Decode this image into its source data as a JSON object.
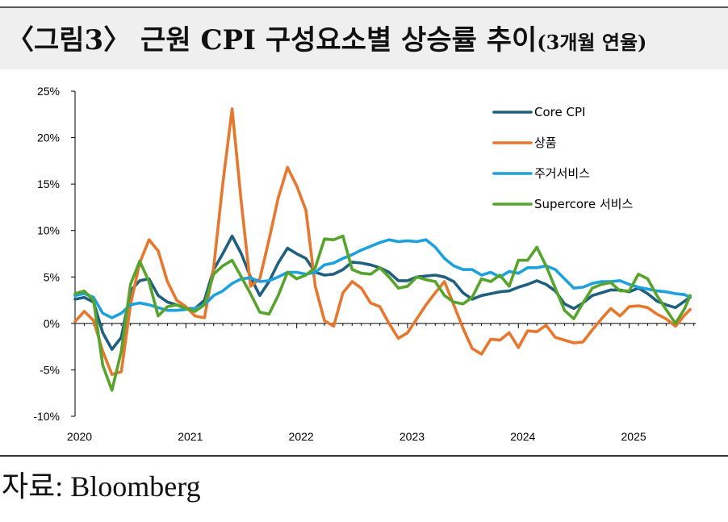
{
  "title": {
    "main": "〈그림3〉 근원 CPI 구성요소별 상승률 추이",
    "sub": "(3개월 연율)"
  },
  "source": "자료: Bloomberg",
  "chart_data": {
    "type": "line",
    "ylim": [
      -10,
      25
    ],
    "yticks": [
      -10,
      -5,
      0,
      5,
      10,
      15,
      20,
      25
    ],
    "ytick_labels": [
      "-10%",
      "-5%",
      "0%",
      "5%",
      "10%",
      "15%",
      "20%",
      "25%"
    ],
    "xlim": [
      2020.0,
      2025.6
    ],
    "xticks": [
      2020,
      2021,
      2022,
      2023,
      2024,
      2025
    ],
    "xtick_labels": [
      "2020",
      "2021",
      "2022",
      "2023",
      "2024",
      "2025"
    ],
    "legend_position": "top-right",
    "series": [
      {
        "name": "Core CPI",
        "color": "#1f5f7f",
        "points": [
          [
            2020.0,
            2.6
          ],
          [
            2020.083,
            2.8
          ],
          [
            2020.167,
            2.3
          ],
          [
            2020.25,
            -1.0
          ],
          [
            2020.333,
            -2.8
          ],
          [
            2020.417,
            -1.5
          ],
          [
            2020.5,
            3.5
          ],
          [
            2020.583,
            4.6
          ],
          [
            2020.667,
            4.8
          ],
          [
            2020.75,
            3.0
          ],
          [
            2020.833,
            2.3
          ],
          [
            2020.917,
            2.0
          ],
          [
            2021.0,
            1.6
          ],
          [
            2021.083,
            1.6
          ],
          [
            2021.167,
            2.5
          ],
          [
            2021.25,
            5.8
          ],
          [
            2021.333,
            7.5
          ],
          [
            2021.417,
            9.4
          ],
          [
            2021.5,
            7.5
          ],
          [
            2021.583,
            5.0
          ],
          [
            2021.667,
            3.0
          ],
          [
            2021.75,
            4.5
          ],
          [
            2021.833,
            6.5
          ],
          [
            2021.917,
            8.1
          ],
          [
            2022.0,
            7.5
          ],
          [
            2022.083,
            7.0
          ],
          [
            2022.167,
            5.5
          ],
          [
            2022.25,
            5.2
          ],
          [
            2022.333,
            5.3
          ],
          [
            2022.417,
            5.8
          ],
          [
            2022.5,
            6.6
          ],
          [
            2022.583,
            6.5
          ],
          [
            2022.667,
            6.3
          ],
          [
            2022.75,
            6.0
          ],
          [
            2022.833,
            5.5
          ],
          [
            2022.917,
            4.6
          ],
          [
            2023.0,
            4.6
          ],
          [
            2023.083,
            5.0
          ],
          [
            2023.167,
            5.1
          ],
          [
            2023.25,
            5.2
          ],
          [
            2023.333,
            5.0
          ],
          [
            2023.417,
            4.5
          ],
          [
            2023.5,
            3.3
          ],
          [
            2023.583,
            2.6
          ],
          [
            2023.667,
            3.0
          ],
          [
            2023.75,
            3.2
          ],
          [
            2023.833,
            3.4
          ],
          [
            2023.917,
            3.5
          ],
          [
            2024.0,
            3.9
          ],
          [
            2024.083,
            4.2
          ],
          [
            2024.167,
            4.6
          ],
          [
            2024.25,
            4.2
          ],
          [
            2024.333,
            3.5
          ],
          [
            2024.417,
            2.1
          ],
          [
            2024.5,
            1.6
          ],
          [
            2024.583,
            2.2
          ],
          [
            2024.667,
            3.0
          ],
          [
            2024.75,
            3.3
          ],
          [
            2024.833,
            3.6
          ],
          [
            2024.917,
            3.6
          ],
          [
            2025.0,
            3.4
          ],
          [
            2025.083,
            3.8
          ],
          [
            2025.167,
            3.2
          ],
          [
            2025.25,
            2.4
          ],
          [
            2025.333,
            2.0
          ],
          [
            2025.417,
            1.7
          ],
          [
            2025.5,
            2.4
          ],
          [
            2025.55,
            2.8
          ]
        ]
      },
      {
        "name": "상품",
        "color": "#e8772e",
        "points": [
          [
            2020.0,
            0.2
          ],
          [
            2020.083,
            1.3
          ],
          [
            2020.167,
            0.3
          ],
          [
            2020.25,
            -3.0
          ],
          [
            2020.333,
            -5.5
          ],
          [
            2020.417,
            -5.2
          ],
          [
            2020.5,
            2.0
          ],
          [
            2020.583,
            6.5
          ],
          [
            2020.667,
            9.0
          ],
          [
            2020.75,
            7.8
          ],
          [
            2020.833,
            4.5
          ],
          [
            2020.917,
            2.5
          ],
          [
            2021.0,
            1.8
          ],
          [
            2021.083,
            0.8
          ],
          [
            2021.167,
            0.6
          ],
          [
            2021.25,
            6.0
          ],
          [
            2021.333,
            15.0
          ],
          [
            2021.417,
            23.1
          ],
          [
            2021.5,
            13.0
          ],
          [
            2021.583,
            4.0
          ],
          [
            2021.667,
            4.8
          ],
          [
            2021.75,
            9.0
          ],
          [
            2021.833,
            13.5
          ],
          [
            2021.917,
            16.8
          ],
          [
            2022.0,
            14.8
          ],
          [
            2022.083,
            12.2
          ],
          [
            2022.167,
            4.0
          ],
          [
            2022.25,
            0.3
          ],
          [
            2022.333,
            -0.3
          ],
          [
            2022.417,
            3.3
          ],
          [
            2022.5,
            4.5
          ],
          [
            2022.583,
            3.8
          ],
          [
            2022.667,
            2.2
          ],
          [
            2022.75,
            1.8
          ],
          [
            2022.833,
            0.0
          ],
          [
            2022.917,
            -1.6
          ],
          [
            2023.0,
            -1.0
          ],
          [
            2023.083,
            0.5
          ],
          [
            2023.167,
            2.0
          ],
          [
            2023.25,
            3.3
          ],
          [
            2023.333,
            4.5
          ],
          [
            2023.417,
            2.0
          ],
          [
            2023.5,
            -0.5
          ],
          [
            2023.583,
            -2.7
          ],
          [
            2023.667,
            -3.3
          ],
          [
            2023.75,
            -1.7
          ],
          [
            2023.833,
            -1.8
          ],
          [
            2023.917,
            -1.0
          ],
          [
            2024.0,
            -2.6
          ],
          [
            2024.083,
            -0.8
          ],
          [
            2024.167,
            -0.9
          ],
          [
            2024.25,
            -0.2
          ],
          [
            2024.333,
            -1.5
          ],
          [
            2024.417,
            -1.8
          ],
          [
            2024.5,
            -2.1
          ],
          [
            2024.583,
            -2.0
          ],
          [
            2024.667,
            -0.7
          ],
          [
            2024.75,
            0.5
          ],
          [
            2024.833,
            1.6
          ],
          [
            2024.917,
            0.8
          ],
          [
            2025.0,
            1.8
          ],
          [
            2025.083,
            1.9
          ],
          [
            2025.167,
            1.7
          ],
          [
            2025.25,
            1.0
          ],
          [
            2025.333,
            0.5
          ],
          [
            2025.417,
            -0.3
          ],
          [
            2025.5,
            0.9
          ],
          [
            2025.55,
            1.5
          ]
        ]
      },
      {
        "name": "주거서비스",
        "color": "#1da1dc",
        "points": [
          [
            2020.0,
            3.0
          ],
          [
            2020.083,
            3.2
          ],
          [
            2020.167,
            2.8
          ],
          [
            2020.25,
            1.1
          ],
          [
            2020.333,
            0.6
          ],
          [
            2020.417,
            1.1
          ],
          [
            2020.5,
            2.0
          ],
          [
            2020.583,
            2.2
          ],
          [
            2020.667,
            2.0
          ],
          [
            2020.75,
            1.7
          ],
          [
            2020.833,
            1.4
          ],
          [
            2020.917,
            1.4
          ],
          [
            2021.0,
            1.5
          ],
          [
            2021.083,
            1.6
          ],
          [
            2021.167,
            2.0
          ],
          [
            2021.25,
            3.0
          ],
          [
            2021.333,
            3.5
          ],
          [
            2021.417,
            4.3
          ],
          [
            2021.5,
            4.8
          ],
          [
            2021.583,
            4.9
          ],
          [
            2021.667,
            4.5
          ],
          [
            2021.75,
            4.6
          ],
          [
            2021.833,
            5.0
          ],
          [
            2021.917,
            5.5
          ],
          [
            2022.0,
            5.5
          ],
          [
            2022.083,
            5.3
          ],
          [
            2022.167,
            5.5
          ],
          [
            2022.25,
            6.3
          ],
          [
            2022.333,
            6.5
          ],
          [
            2022.417,
            7.0
          ],
          [
            2022.5,
            7.4
          ],
          [
            2022.583,
            7.9
          ],
          [
            2022.667,
            8.3
          ],
          [
            2022.75,
            8.7
          ],
          [
            2022.833,
            9.0
          ],
          [
            2022.917,
            8.8
          ],
          [
            2023.0,
            8.9
          ],
          [
            2023.083,
            8.8
          ],
          [
            2023.167,
            9.0
          ],
          [
            2023.25,
            8.2
          ],
          [
            2023.333,
            7.0
          ],
          [
            2023.417,
            6.2
          ],
          [
            2023.5,
            5.8
          ],
          [
            2023.583,
            5.8
          ],
          [
            2023.667,
            5.2
          ],
          [
            2023.75,
            5.5
          ],
          [
            2023.833,
            5.0
          ],
          [
            2023.917,
            5.6
          ],
          [
            2024.0,
            5.4
          ],
          [
            2024.083,
            6.0
          ],
          [
            2024.167,
            6.0
          ],
          [
            2024.25,
            6.2
          ],
          [
            2024.333,
            5.8
          ],
          [
            2024.417,
            4.8
          ],
          [
            2024.5,
            3.8
          ],
          [
            2024.583,
            3.9
          ],
          [
            2024.667,
            4.3
          ],
          [
            2024.75,
            4.5
          ],
          [
            2024.833,
            4.5
          ],
          [
            2024.917,
            4.6
          ],
          [
            2025.0,
            4.2
          ],
          [
            2025.083,
            3.9
          ],
          [
            2025.167,
            3.7
          ],
          [
            2025.25,
            3.5
          ],
          [
            2025.333,
            3.4
          ],
          [
            2025.417,
            3.2
          ],
          [
            2025.5,
            3.1
          ],
          [
            2025.55,
            2.8
          ]
        ]
      },
      {
        "name": "Supercore 서비스",
        "color": "#57a42c",
        "points": [
          [
            2020.0,
            3.2
          ],
          [
            2020.083,
            3.5
          ],
          [
            2020.167,
            2.5
          ],
          [
            2020.25,
            -4.5
          ],
          [
            2020.333,
            -7.2
          ],
          [
            2020.417,
            -3.0
          ],
          [
            2020.5,
            4.2
          ],
          [
            2020.583,
            6.7
          ],
          [
            2020.667,
            4.5
          ],
          [
            2020.75,
            0.8
          ],
          [
            2020.833,
            1.8
          ],
          [
            2020.917,
            2.0
          ],
          [
            2021.0,
            1.6
          ],
          [
            2021.083,
            1.3
          ],
          [
            2021.167,
            2.0
          ],
          [
            2021.25,
            5.3
          ],
          [
            2021.333,
            6.2
          ],
          [
            2021.417,
            6.8
          ],
          [
            2021.5,
            5.0
          ],
          [
            2021.583,
            3.2
          ],
          [
            2021.667,
            1.2
          ],
          [
            2021.75,
            1.0
          ],
          [
            2021.833,
            3.0
          ],
          [
            2021.917,
            5.5
          ],
          [
            2022.0,
            4.8
          ],
          [
            2022.083,
            5.2
          ],
          [
            2022.167,
            6.0
          ],
          [
            2022.25,
            9.1
          ],
          [
            2022.333,
            9.0
          ],
          [
            2022.417,
            9.4
          ],
          [
            2022.5,
            5.8
          ],
          [
            2022.583,
            5.4
          ],
          [
            2022.667,
            5.3
          ],
          [
            2022.75,
            6.0
          ],
          [
            2022.833,
            5.0
          ],
          [
            2022.917,
            3.8
          ],
          [
            2023.0,
            4.0
          ],
          [
            2023.083,
            5.0
          ],
          [
            2023.167,
            4.7
          ],
          [
            2023.25,
            4.5
          ],
          [
            2023.333,
            3.0
          ],
          [
            2023.417,
            2.3
          ],
          [
            2023.5,
            2.1
          ],
          [
            2023.583,
            2.8
          ],
          [
            2023.667,
            4.8
          ],
          [
            2023.75,
            4.5
          ],
          [
            2023.833,
            5.2
          ],
          [
            2023.917,
            4.0
          ],
          [
            2024.0,
            6.8
          ],
          [
            2024.083,
            6.8
          ],
          [
            2024.167,
            8.2
          ],
          [
            2024.25,
            6.2
          ],
          [
            2024.333,
            3.8
          ],
          [
            2024.417,
            1.4
          ],
          [
            2024.5,
            0.5
          ],
          [
            2024.583,
            2.2
          ],
          [
            2024.667,
            3.8
          ],
          [
            2024.75,
            4.2
          ],
          [
            2024.833,
            4.4
          ],
          [
            2024.917,
            3.5
          ],
          [
            2025.0,
            3.5
          ],
          [
            2025.083,
            5.3
          ],
          [
            2025.167,
            4.8
          ],
          [
            2025.25,
            3.0
          ],
          [
            2025.333,
            1.5
          ],
          [
            2025.417,
            0.0
          ],
          [
            2025.5,
            1.6
          ],
          [
            2025.55,
            3.0
          ]
        ]
      }
    ]
  }
}
